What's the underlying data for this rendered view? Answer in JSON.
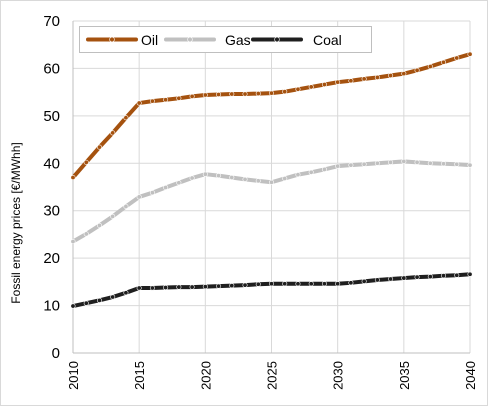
{
  "chart_data": {
    "type": "line",
    "title": "",
    "xlabel": "",
    "ylabel": "Fossil energy prices [€/MWhh]",
    "x": [
      2010,
      2011,
      2012,
      2013,
      2014,
      2015,
      2016,
      2017,
      2018,
      2019,
      2020,
      2021,
      2022,
      2023,
      2024,
      2025,
      2026,
      2027,
      2028,
      2029,
      2030,
      2031,
      2032,
      2033,
      2034,
      2035,
      2036,
      2037,
      2038,
      2039,
      2040
    ],
    "xticks": [
      "2010",
      "2015",
      "2020",
      "2025",
      "2030",
      "2035",
      "2040"
    ],
    "yticks": [
      "0",
      "10",
      "20",
      "30",
      "40",
      "50",
      "60",
      "70"
    ],
    "xlim": [
      2010,
      2040
    ],
    "ylim": [
      0,
      70
    ],
    "grid": true,
    "legend_position": "top",
    "series": [
      {
        "name": "Oil",
        "color": "#a5520f",
        "values": [
          37.0,
          40.2,
          43.4,
          46.4,
          49.6,
          52.7,
          53.1,
          53.4,
          53.7,
          54.1,
          54.4,
          54.5,
          54.6,
          54.6,
          54.7,
          54.8,
          55.1,
          55.6,
          56.1,
          56.6,
          57.1,
          57.4,
          57.8,
          58.1,
          58.5,
          58.9,
          59.6,
          60.4,
          61.3,
          62.2,
          63.0
        ]
      },
      {
        "name": "Gas",
        "color": "#c0c0c0",
        "values": [
          23.5,
          25.1,
          26.9,
          28.8,
          30.9,
          32.9,
          33.8,
          34.9,
          35.9,
          36.9,
          37.7,
          37.4,
          37.0,
          36.6,
          36.3,
          36.0,
          36.8,
          37.6,
          38.1,
          38.7,
          39.4,
          39.6,
          39.8,
          40.0,
          40.2,
          40.4,
          40.2,
          40.0,
          39.9,
          39.8,
          39.6
        ]
      },
      {
        "name": "Coal",
        "color": "#1f1f1f",
        "values": [
          9.9,
          10.5,
          11.1,
          11.8,
          12.7,
          13.7,
          13.7,
          13.8,
          13.9,
          13.9,
          14.0,
          14.1,
          14.2,
          14.3,
          14.5,
          14.6,
          14.6,
          14.6,
          14.6,
          14.6,
          14.6,
          14.8,
          15.1,
          15.4,
          15.6,
          15.8,
          16.0,
          16.1,
          16.3,
          16.4,
          16.6
        ]
      }
    ]
  }
}
